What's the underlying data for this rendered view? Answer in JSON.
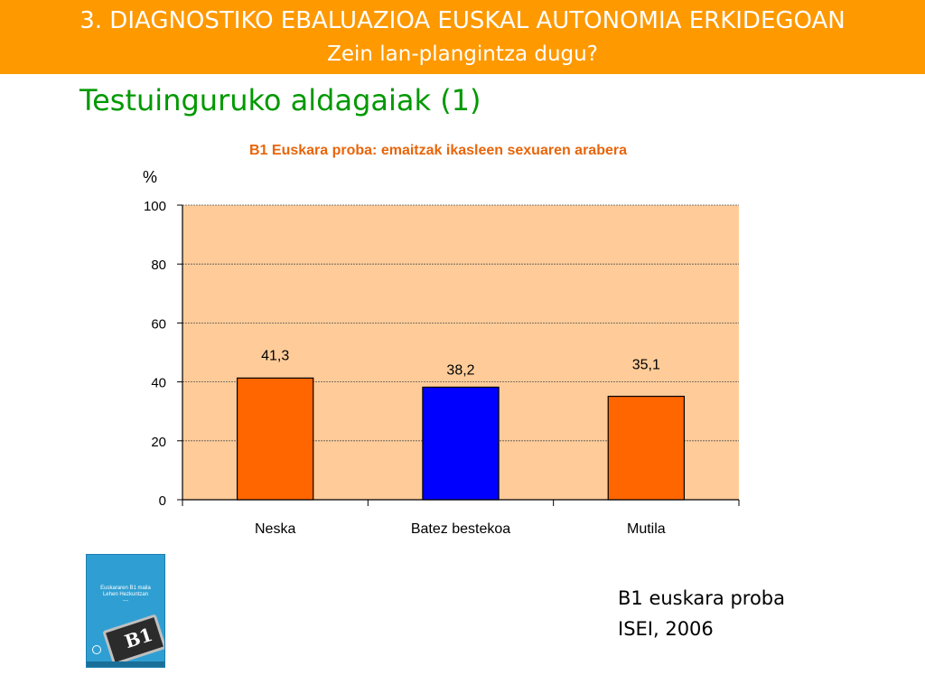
{
  "header": {
    "line1": "3. DIAGNOSTIKO EBALUAZIOA EUSKAL AUTONOMIA ERKIDEGOAN",
    "line2": "Zein lan-plangintza dugu?"
  },
  "slide": {
    "title": "Testuinguruko aldagaiak (1)"
  },
  "chart_data": {
    "type": "bar",
    "title": "B1 Euskara proba: emaitzak ikasleen sexuaren arabera",
    "ylabel": "%",
    "xlabel": "",
    "categories": [
      "Neska",
      "Batez bestekoa",
      "Mutila"
    ],
    "values": [
      41.3,
      38.2,
      35.1
    ],
    "value_labels": [
      "41,3",
      "38,2",
      "35,1"
    ],
    "bar_colors": [
      "#ff6600",
      "#0000ff",
      "#ff6600"
    ],
    "ylim": [
      0,
      100
    ],
    "yticks": [
      0,
      20,
      40,
      60,
      80,
      100
    ],
    "grid": true,
    "plot_background": "#ffcc99"
  },
  "book": {
    "line1": "Euskararen B1 maila",
    "line2": "Lehen Hezkuntzan",
    "badge": "B1"
  },
  "source": {
    "line1": "B1 euskara proba",
    "line2": "ISEI, 2006"
  }
}
